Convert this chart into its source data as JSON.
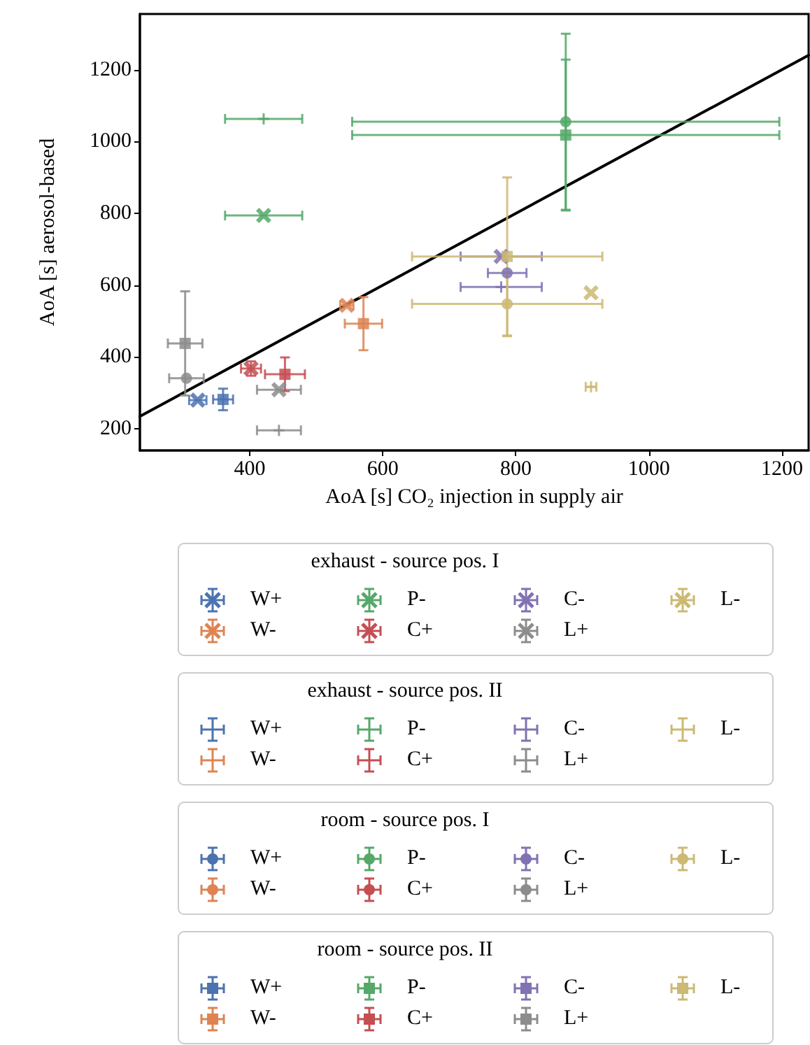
{
  "chart_data": {
    "type": "scatter",
    "xlabel": "AoA [s] CO₂ injection in supply air",
    "ylabel": "AoA [s] aerosol-based",
    "legend_title": [
      "exhaust - source pos. I",
      "exhaust - source pos. II",
      "room - source pos. I",
      "room - source pos. II"
    ],
    "xlim": [
      235,
      1240
    ],
    "ylim": [
      140,
      1355
    ],
    "xticks": [
      400,
      600,
      800,
      1000,
      1200
    ],
    "yticks": [
      200,
      400,
      600,
      800,
      1000,
      1200
    ],
    "grid": false,
    "legend": "bottom",
    "series": [
      {
        "name": "W+",
        "color": "#4c72b0",
        "marker": "cross",
        "x": [
          322
        ],
        "values": [
          280
        ],
        "xerrors": [
          13
        ]
      },
      {
        "name": "W-",
        "color": "#dd8452",
        "marker": "cross",
        "x": [
          546
        ],
        "values": [
          544
        ],
        "xerrors": [
          10
        ]
      },
      {
        "name": "P-",
        "color": "#55a868",
        "marker": "cross",
        "x": [
          421
        ],
        "values": [
          794
        ],
        "xerrors": [
          58
        ]
      },
      {
        "name": "C+",
        "color": "#c44e52",
        "marker": "cross",
        "x": [
          402
        ],
        "values": [
          368
        ],
        "xerrors": [
          15
        ],
        "errors": [
          20
        ]
      },
      {
        "name": "C-",
        "color": "#8172b3",
        "marker": "cross",
        "x": [
          778
        ],
        "values": [
          680
        ],
        "xerrors": [
          61
        ]
      },
      {
        "name": "L+",
        "color": "#8c8c8c",
        "marker": "cross",
        "x": [
          444
        ],
        "values": [
          309
        ],
        "xerrors": [
          33
        ]
      },
      {
        "name": "L-",
        "color": "#ccb974",
        "marker": "cross",
        "x": [
          913
        ],
        "values": [
          579
        ]
      },
      {
        "name": "W+",
        "color": "#4c72b0",
        "x": [
          null
        ],
        "values": [
          null
        ]
      },
      {
        "name": "W-",
        "color": "#dd8452",
        "x": [
          null
        ],
        "values": [
          null
        ]
      },
      {
        "name": "P-",
        "color": "#55a868",
        "x": [
          421
        ],
        "values": [
          1063
        ],
        "xerrors": [
          58
        ]
      },
      {
        "name": "C+",
        "color": "#c44e52",
        "x": [
          null
        ],
        "values": [
          null
        ]
      },
      {
        "name": "C-",
        "color": "#8172b3",
        "x": [
          778
        ],
        "values": [
          595
        ],
        "xerrors": [
          61
        ]
      },
      {
        "name": "L+",
        "color": "#8c8c8c",
        "x": [
          444
        ],
        "values": [
          196
        ],
        "xerrors": [
          33
        ]
      },
      {
        "name": "L-",
        "color": "#ccb974",
        "x": [
          913
        ],
        "values": [
          317
        ],
        "xerrors": [
          8
        ]
      },
      {
        "name": "W+",
        "color": "#4c72b0",
        "marker": "circle",
        "x": [
          null
        ],
        "values": [
          null
        ]
      },
      {
        "name": "W-",
        "color": "#dd8452",
        "marker": "circle",
        "x": [
          null
        ],
        "values": [
          null
        ]
      },
      {
        "name": "P-",
        "color": "#55a868",
        "marker": "circle",
        "x": [
          875
        ],
        "values": [
          1055
        ],
        "xerrors": [
          321
        ],
        "errors": [
          245
        ]
      },
      {
        "name": "C+",
        "color": "#c44e52",
        "marker": "circle",
        "x": [
          null
        ],
        "values": [
          null
        ]
      },
      {
        "name": "C-",
        "color": "#8172b3",
        "marker": "circle",
        "x": [
          787
        ],
        "values": [
          634
        ],
        "xerrors": [
          29
        ]
      },
      {
        "name": "L+",
        "color": "#8c8c8c",
        "marker": "circle",
        "x": [
          305
        ],
        "values": [
          341
        ],
        "xerrors": [
          26
        ]
      },
      {
        "name": "L-",
        "color": "#ccb974",
        "marker": "circle",
        "x": [
          787
        ],
        "values": [
          548
        ],
        "xerrors": [
          143
        ],
        "errors": [
          90
        ]
      },
      {
        "name": "W+",
        "color": "#4c72b0",
        "marker": "square",
        "x": [
          360
        ],
        "values": [
          282
        ],
        "xerrors": [
          15
        ],
        "errors": [
          30
        ]
      },
      {
        "name": "W-",
        "color": "#dd8452",
        "marker": "square",
        "x": [
          571
        ],
        "values": [
          493
        ],
        "xerrors": [
          28
        ],
        "errors": [
          74
        ]
      },
      {
        "name": "P-",
        "color": "#55a868",
        "marker": "square",
        "x": [
          875
        ],
        "values": [
          1018
        ],
        "xerrors": [
          321
        ],
        "errors": [
          210
        ]
      },
      {
        "name": "C+",
        "color": "#c44e52",
        "marker": "square",
        "x": [
          453
        ],
        "values": [
          352
        ],
        "xerrors": [
          30
        ],
        "errors": [
          47
        ]
      },
      {
        "name": "C-",
        "color": "#8172b3",
        "marker": "square",
        "x": [
          null
        ],
        "values": [
          null
        ]
      },
      {
        "name": "L+",
        "color": "#8c8c8c",
        "marker": "square",
        "x": [
          303
        ],
        "values": [
          438
        ],
        "xerrors": [
          26
        ],
        "errors": [
          145
        ]
      },
      {
        "name": "L-",
        "color": "#ccb974",
        "marker": "square",
        "x": [
          787
        ],
        "values": [
          680
        ],
        "xerrors": [
          143
        ],
        "errors": [
          220
        ]
      },
      {
        "type": "line",
        "color": "#000000",
        "marker": "none",
        "x": [
          235,
          1240
        ],
        "values": [
          235,
          1240
        ]
      }
    ]
  }
}
